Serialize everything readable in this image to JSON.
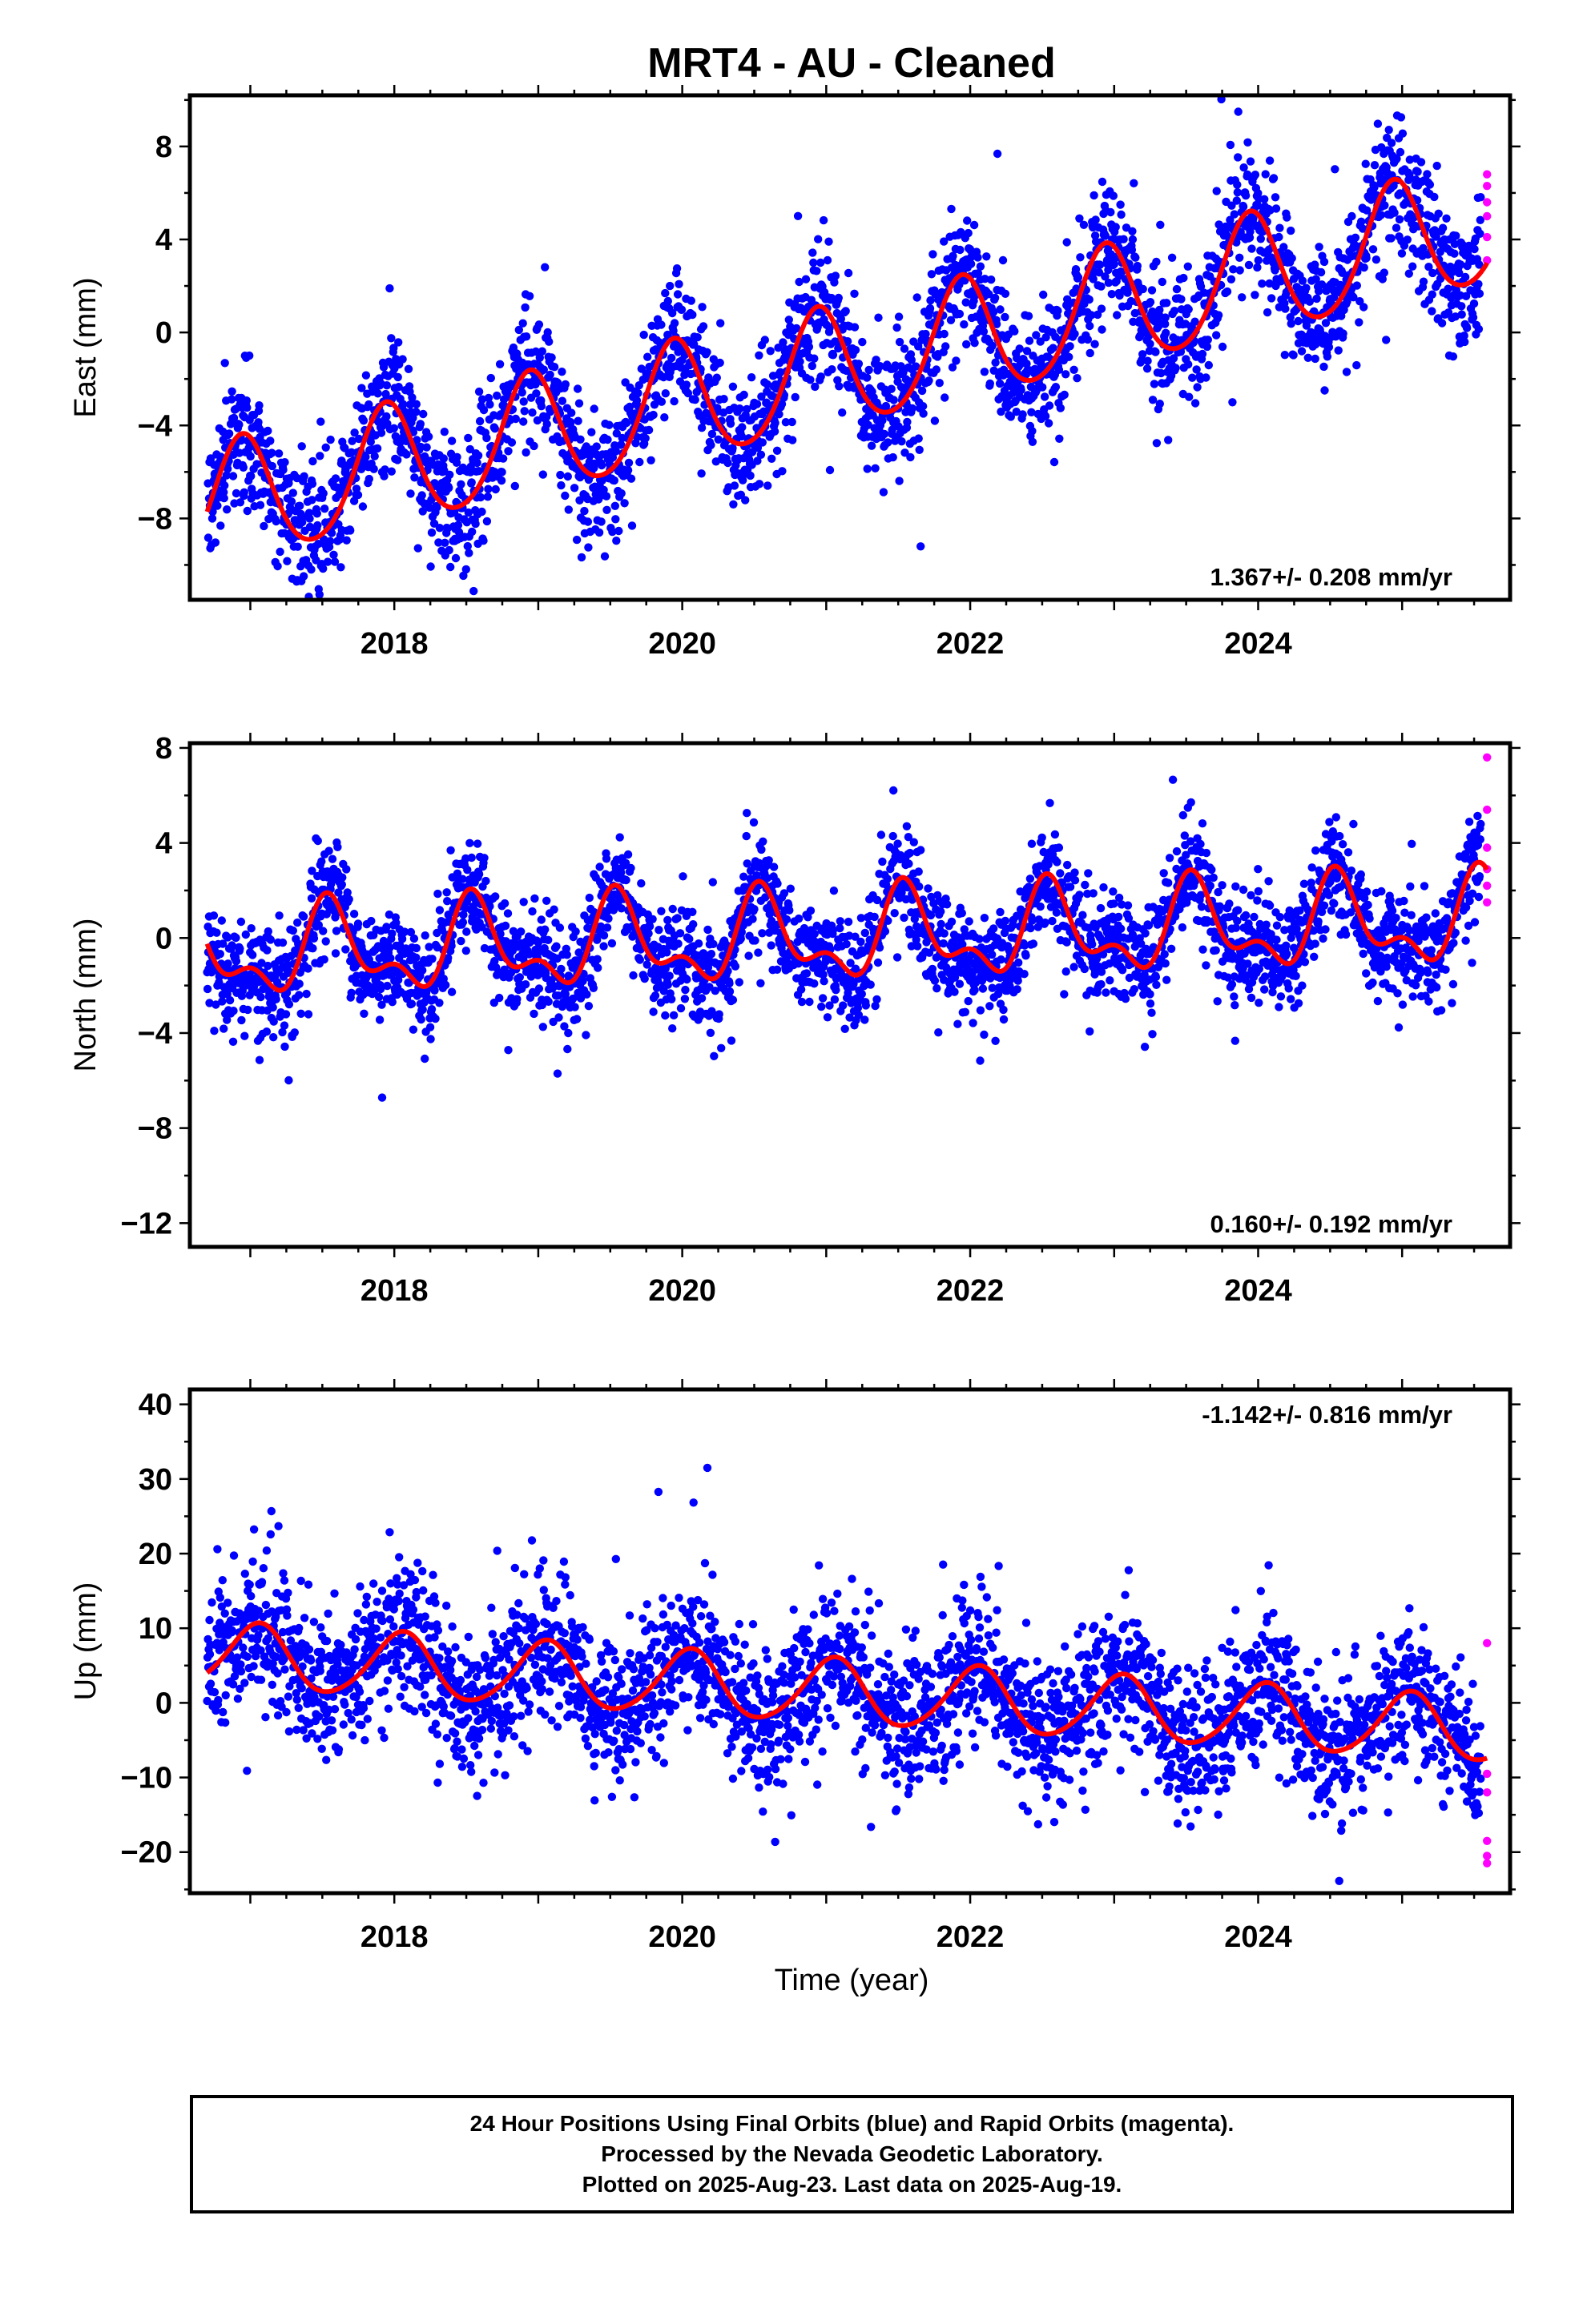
{
  "title": "MRT4  - AU - Cleaned",
  "xlabel": "Time (year)",
  "footer": {
    "line1": "24 Hour Positions Using Final Orbits (blue) and Rapid Orbits (magenta).",
    "line2": "Processed by the Nevada Geodetic Laboratory.",
    "line3": "Plotted on 2025-Aug-23. Last data on 2025-Aug-19."
  },
  "colors": {
    "final": "#0000ff",
    "rapid": "#ff00ff",
    "model": "#ff0000",
    "frame": "#000000"
  },
  "chart_data": [
    {
      "type": "scatter",
      "component": "east",
      "ylabel": "East (mm)",
      "xlim": [
        2016.58,
        2025.75
      ],
      "ylim": [
        -11.5,
        10.2
      ],
      "yticks": [
        -8,
        -4,
        0,
        4,
        8
      ],
      "xticks": [
        2018,
        2020,
        2022,
        2024
      ],
      "rate_text": "1.367+/- 0.208 mm/yr",
      "rate_position": "bottom-right",
      "series": [
        {
          "role": "final",
          "x_range": [
            2016.7,
            2025.55
          ],
          "scatter_mm": 1.4,
          "model": {
            "t0": 2021.0,
            "offset": -1.7,
            "rate": 1.367,
            "annual_amp": 2.6,
            "annual_peak": 0.94,
            "semi_amp": 0.3,
            "semi_peak": 0.45
          }
        },
        {
          "role": "rapid",
          "x": [
            2025.59,
            2025.59,
            2025.59,
            2025.59,
            2025.59,
            2025.59
          ],
          "y": [
            6.8,
            6.3,
            5.6,
            5.0,
            4.1,
            3.1
          ]
        }
      ]
    },
    {
      "type": "scatter",
      "component": "north",
      "ylabel": "North (mm)",
      "xlim": [
        2016.58,
        2025.75
      ],
      "ylim": [
        -13.0,
        8.2
      ],
      "yticks": [
        -12,
        -8,
        -4,
        0,
        4,
        8
      ],
      "xticks": [
        2018,
        2020,
        2022,
        2024
      ],
      "rate_text": "0.160+/- 0.192 mm/yr",
      "rate_position": "bottom-right",
      "series": [
        {
          "role": "final",
          "x_range": [
            2016.7,
            2025.55
          ],
          "scatter_mm": 1.1,
          "model": {
            "t0": 2021.0,
            "offset": 0.0,
            "rate": 0.16,
            "annual_amp": 1.6,
            "annual_peak": 0.56,
            "semi_amp": 0.9,
            "semi_peak": 0.52
          }
        },
        {
          "role": "rapid",
          "x": [
            2025.59,
            2025.59,
            2025.59,
            2025.59,
            2025.59,
            2025.59
          ],
          "y": [
            7.6,
            5.4,
            3.8,
            2.9,
            2.2,
            1.5
          ]
        }
      ]
    },
    {
      "type": "scatter",
      "component": "up",
      "ylabel": "Up (mm)",
      "xlim": [
        2016.58,
        2025.75
      ],
      "ylim": [
        -25.5,
        42.0
      ],
      "yticks": [
        -20,
        -10,
        0,
        10,
        20,
        30,
        40
      ],
      "xticks": [
        2018,
        2020,
        2022,
        2024
      ],
      "rate_text": "-1.142+/- 0.816 mm/yr",
      "rate_position": "top-right",
      "series": [
        {
          "role": "final",
          "x_range": [
            2016.7,
            2025.55
          ],
          "scatter_mm": 4.8,
          "model": {
            "t0": 2021.0,
            "offset": 1.5,
            "rate": -1.142,
            "annual_amp": 4.3,
            "annual_peak": 0.05,
            "semi_amp": 0.5,
            "semi_peak": 0.1
          }
        },
        {
          "role": "rapid",
          "x": [
            2025.59,
            2025.59,
            2025.59,
            2025.59,
            2025.59,
            2025.59
          ],
          "y": [
            8.0,
            -9.5,
            -12.0,
            -18.5,
            -20.5,
            -21.5
          ]
        }
      ]
    }
  ]
}
